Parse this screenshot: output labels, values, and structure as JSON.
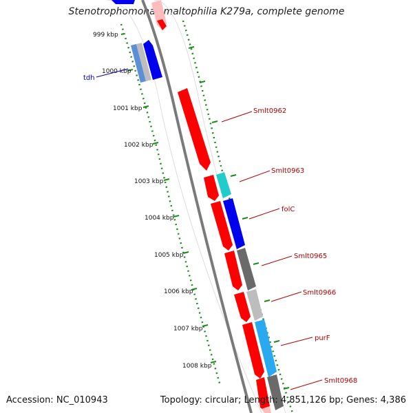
{
  "title": "Stenotrophomonas maltophilia K279a, complete genome",
  "accession_text": "Accession: NC_010943",
  "topology_text": "Topology: circular; Length: 4,851,126 bp; Genes: 4,386",
  "kbp_labels": [
    "999 kbp",
    "1000 kbp",
    "1001 kbp",
    "1002 kbp",
    "1003 kbp",
    "1004 kbp",
    "1005 kbp",
    "1006 kbp",
    "1007 kbp",
    "1008 kbp"
  ],
  "gene_labels": {
    "tdh": "tdh",
    "smlt0962": "Smlt0962",
    "smlt0963": "Smlt0963",
    "folC": "folC",
    "smlt0965": "Smlt0965",
    "smlt0966": "Smlt0966",
    "purF": "purF",
    "smlt0968": "Smlt0968"
  },
  "colors": {
    "backbone": "#7a7a7a",
    "tick": "#1a8a1a",
    "red": "#ff0000",
    "blue": "#0000ee",
    "cyan": "#22cccc",
    "lightblue": "#29a9f0",
    "darkgray": "#6a6a6a",
    "lightgray": "#bdbdbd",
    "label_red": "#b00000",
    "label_blue": "#0000b0"
  }
}
